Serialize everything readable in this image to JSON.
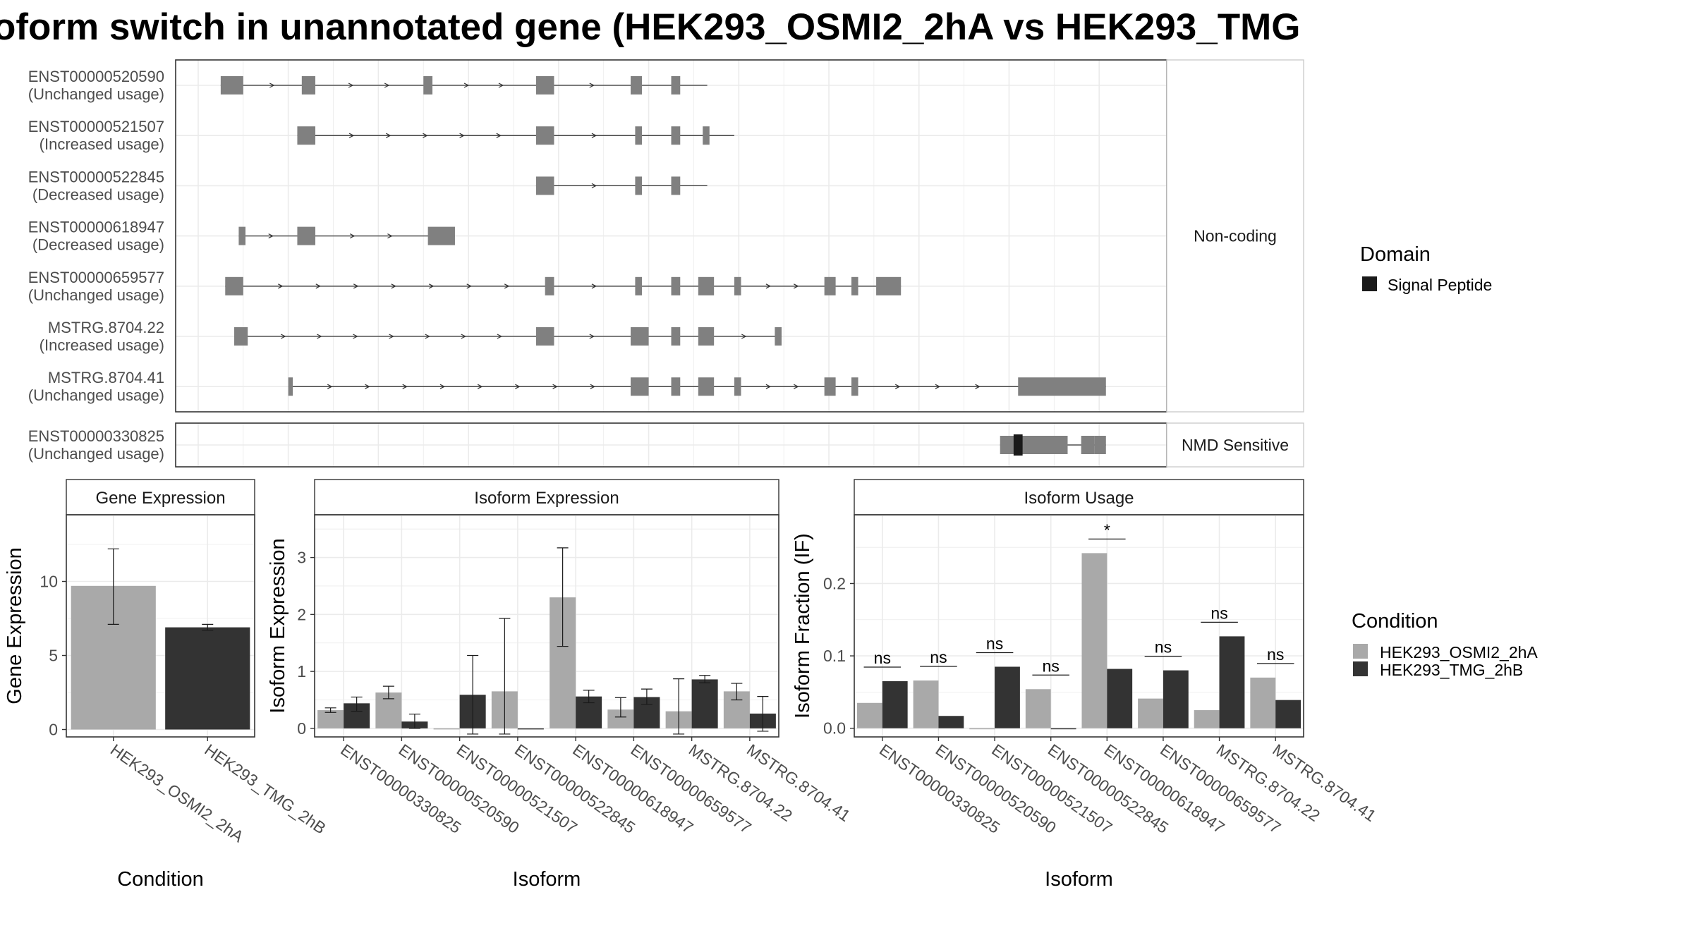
{
  "title": "oform switch in unannotated gene (HEK293_OSMI2_2hA vs HEK293_TMG",
  "transcripts": {
    "groups": [
      {
        "label": "Non-coding",
        "rows": [
          {
            "id": "ENST00000520590",
            "usage": "(Unchanged usage)",
            "start": 0.5,
            "end": 11.3,
            "exons": [
              [
                0.5,
                1.0
              ],
              [
                2.3,
                2.6
              ],
              [
                5.0,
                5.2
              ],
              [
                7.5,
                7.9
              ],
              [
                9.6,
                9.85
              ],
              [
                10.5,
                10.7
              ]
            ]
          },
          {
            "id": "ENST00000521507",
            "usage": "(Increased usage)",
            "start": 2.2,
            "end": 11.9,
            "exons": [
              [
                2.2,
                2.6
              ],
              [
                7.5,
                7.9
              ],
              [
                9.7,
                9.85
              ],
              [
                10.5,
                10.7
              ],
              [
                11.2,
                11.35
              ]
            ]
          },
          {
            "id": "ENST00000522845",
            "usage": "(Decreased usage)",
            "start": 7.5,
            "end": 11.3,
            "exons": [
              [
                7.5,
                7.9
              ],
              [
                9.7,
                9.85
              ],
              [
                10.5,
                10.7
              ]
            ]
          },
          {
            "id": "ENST00000618947",
            "usage": "(Decreased usage)",
            "start": 0.9,
            "end": 5.7,
            "exons": [
              [
                0.9,
                1.05
              ],
              [
                2.2,
                2.6
              ],
              [
                5.1,
                5.7
              ]
            ]
          },
          {
            "id": "ENST00000659577",
            "usage": "(Unchanged usage)",
            "start": 0.6,
            "end": 15.6,
            "exons": [
              [
                0.6,
                1.0
              ],
              [
                7.7,
                7.9
              ],
              [
                9.7,
                9.85
              ],
              [
                10.5,
                10.7
              ],
              [
                11.1,
                11.45
              ],
              [
                11.9,
                12.05
              ],
              [
                13.9,
                14.15
              ],
              [
                14.5,
                14.65
              ],
              [
                15.05,
                15.6
              ]
            ]
          },
          {
            "id": "MSTRG.8704.22",
            "usage": "(Increased usage)",
            "start": 0.8,
            "end": 12.95,
            "exons": [
              [
                0.8,
                1.1
              ],
              [
                7.5,
                7.9
              ],
              [
                9.6,
                10.0
              ],
              [
                10.5,
                10.7
              ],
              [
                11.1,
                11.45
              ],
              [
                12.8,
                12.95
              ]
            ]
          },
          {
            "id": "MSTRG.8704.41",
            "usage": "(Unchanged usage)",
            "start": 2.0,
            "end": 20.15,
            "exons": [
              [
                2.0,
                2.1
              ],
              [
                9.6,
                10.0
              ],
              [
                10.5,
                10.7
              ],
              [
                11.1,
                11.45
              ],
              [
                11.9,
                12.05
              ],
              [
                13.9,
                14.15
              ],
              [
                14.5,
                14.65
              ],
              [
                18.2,
                20.15
              ]
            ]
          }
        ]
      },
      {
        "label": "NMD Sensitive",
        "rows": [
          {
            "id": "ENST00000330825",
            "usage": "(Unchanged usage)",
            "start": 17.8,
            "end": 20.15,
            "exons": [
              [
                17.8,
                18.9
              ],
              [
                19.6,
                19.9
              ],
              [
                20.1,
                20.15
              ]
            ],
            "exons_full": [
              [
                17.8,
                19.3
              ],
              [
                19.6,
                19.9
              ],
              [
                19.9,
                20.15
              ]
            ],
            "domain": [
              18.1,
              18.3
            ]
          }
        ]
      }
    ],
    "xlim": [
      -0.5,
      21.5
    ]
  },
  "legend_domain": {
    "title": "Domain",
    "items": [
      {
        "label": "Signal Peptide",
        "color": "#1a1a1a"
      }
    ]
  },
  "legend_condition": {
    "title": "Condition",
    "items": [
      {
        "label": "HEK293_OSMI2_2hA",
        "color": "#a9a9a9"
      },
      {
        "label": "HEK293_TMG_2hB",
        "color": "#333333"
      }
    ]
  },
  "colors": {
    "exon": "#808080",
    "osmi": "#a9a9a9",
    "tmg": "#333333",
    "domain": "#1a1a1a"
  },
  "chart_data": [
    {
      "type": "bar",
      "title": "Gene Expression",
      "xlabel": "Condition",
      "ylabel": "Gene Expression",
      "categories": [
        "HEK293_OSMI2_2hA",
        "HEK293_TMG_2hB"
      ],
      "values": [
        9.7,
        6.9
      ],
      "errors": [
        [
          7.1,
          12.2
        ],
        [
          6.7,
          7.1
        ]
      ],
      "ylim": [
        -0.5,
        14.5
      ],
      "yticks": [
        0,
        5,
        10
      ]
    },
    {
      "type": "bar",
      "title": "Isoform Expression",
      "xlabel": "Isoform",
      "ylabel": "Isoform Expression",
      "categories": [
        "ENST00000330825",
        "ENST00000520590",
        "ENST00000521507",
        "ENST00000522845",
        "ENST00000618947",
        "ENST00000659577",
        "MSTRG.8704.22",
        "MSTRG.8704.41"
      ],
      "series": [
        {
          "name": "HEK293_OSMI2_2hA",
          "values": [
            0.32,
            0.63,
            0.0,
            0.65,
            2.3,
            0.33,
            0.3,
            0.65
          ],
          "errors": [
            [
              0.28,
              0.36
            ],
            [
              0.52,
              0.74
            ],
            [
              0.0,
              0.0
            ],
            [
              -0.1,
              1.93
            ],
            [
              1.44,
              3.17
            ],
            [
              0.2,
              0.54
            ],
            [
              -0.1,
              0.87
            ],
            [
              0.5,
              0.79
            ]
          ]
        },
        {
          "name": "HEK293_TMG_2hB",
          "values": [
            0.44,
            0.12,
            0.59,
            0.0,
            0.56,
            0.55,
            0.86,
            0.26
          ],
          "errors": [
            [
              0.3,
              0.55
            ],
            [
              0.0,
              0.25
            ],
            [
              -0.1,
              1.28
            ],
            [
              0.0,
              0.0
            ],
            [
              0.45,
              0.67
            ],
            [
              0.42,
              0.69
            ],
            [
              0.8,
              0.93
            ],
            [
              -0.05,
              0.56
            ]
          ]
        }
      ],
      "ylim": [
        -0.15,
        3.75
      ],
      "yticks": [
        0,
        1,
        2,
        3
      ]
    },
    {
      "type": "bar",
      "title": "Isoform Usage",
      "xlabel": "Isoform",
      "ylabel": "Isoform Fraction (IF)",
      "categories": [
        "ENST00000330825",
        "ENST00000520590",
        "ENST00000521507",
        "ENST00000522845",
        "ENST00000618947",
        "ENST00000659577",
        "MSTRG.8704.22",
        "MSTRG.8704.41"
      ],
      "series": [
        {
          "name": "HEK293_OSMI2_2hA",
          "values": [
            0.035,
            0.066,
            0.0,
            0.054,
            0.242,
            0.041,
            0.025,
            0.07
          ]
        },
        {
          "name": "HEK293_TMG_2hB",
          "values": [
            0.065,
            0.017,
            0.085,
            0.0,
            0.082,
            0.08,
            0.127,
            0.039
          ]
        }
      ],
      "significance": [
        "ns",
        "ns",
        "ns",
        "ns",
        "*",
        "ns",
        "ns",
        "ns"
      ],
      "ylim": [
        -0.012,
        0.295
      ],
      "yticks": [
        0.0,
        0.1,
        0.2
      ],
      "ytick_labels": [
        "0.0",
        "0.1",
        "0.2"
      ]
    }
  ]
}
